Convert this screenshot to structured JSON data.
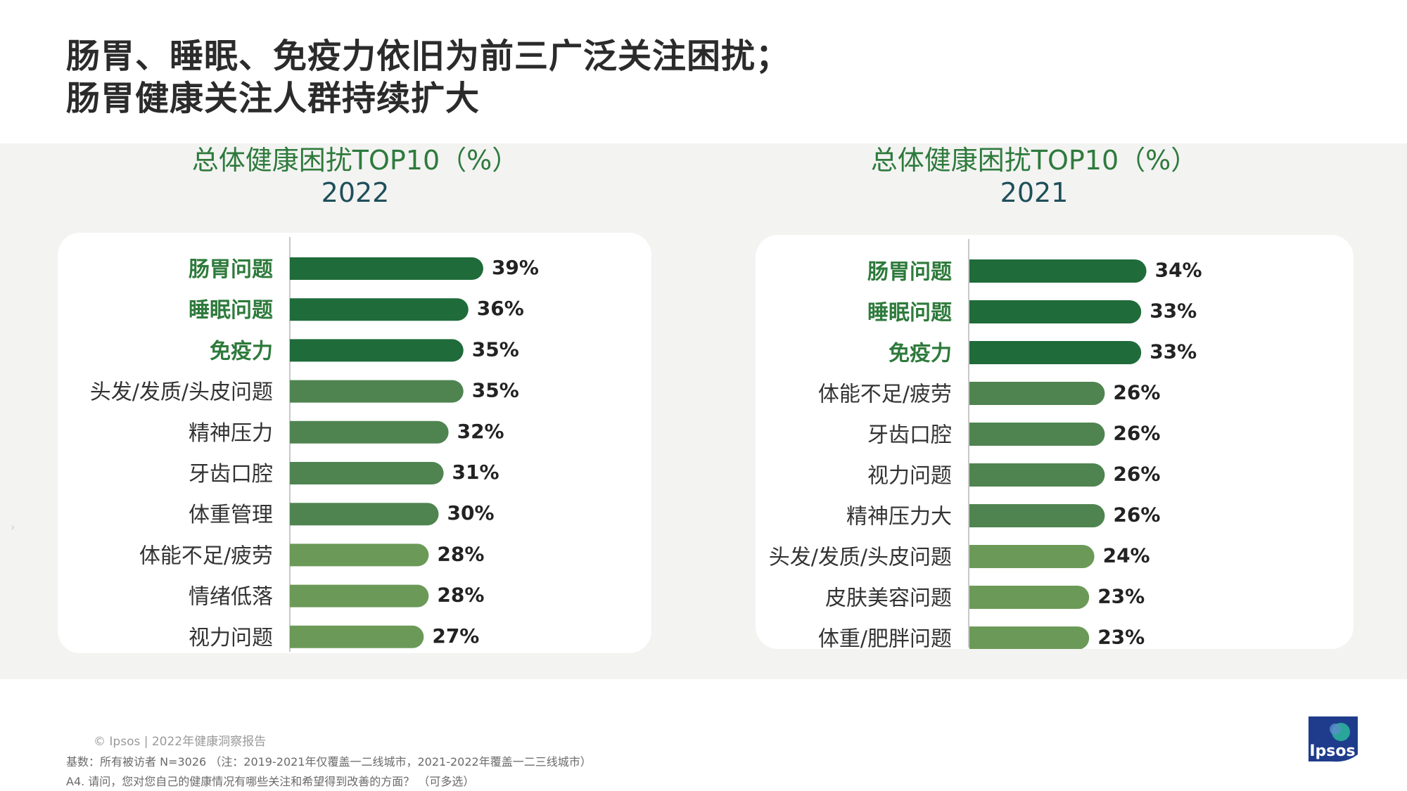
{
  "title": {
    "line1": "肠胃、睡眠、免疫力依旧为前三广泛关注困扰；",
    "line2": "肠胃健康关注人群持续扩大"
  },
  "colors": {
    "top3_bar": "#1f6b3a",
    "mid_bar": "#4f8450",
    "low_bar": "#6b9a58",
    "top3_label": "#2e7a3c",
    "title_green": "#2e7a3c",
    "year_color": "#1f4f5a",
    "band": "#f3f3f2"
  },
  "chart_data": [
    {
      "type": "bar",
      "orientation": "horizontal",
      "title": "总体健康困扰TOP10（%）",
      "subtitle": "2022",
      "categories": [
        "肠胃问题",
        "睡眠问题",
        "免疫力",
        "头发/发质/头皮问题",
        "精神压力",
        "牙齿口腔",
        "体重管理",
        "体能不足/疲劳",
        "情绪低落",
        "视力问题"
      ],
      "values": [
        39,
        36,
        35,
        35,
        32,
        31,
        30,
        28,
        28,
        27
      ],
      "value_labels": [
        "39%",
        "36%",
        "35%",
        "35%",
        "32%",
        "31%",
        "30%",
        "28%",
        "28%",
        "27%"
      ],
      "tiers": [
        0,
        0,
        0,
        1,
        1,
        1,
        1,
        2,
        2,
        2
      ],
      "highlighted": [
        true,
        true,
        true,
        false,
        false,
        false,
        false,
        false,
        false,
        false
      ]
    },
    {
      "type": "bar",
      "orientation": "horizontal",
      "title": "总体健康困扰TOP10（%）",
      "subtitle": "2021",
      "categories": [
        "肠胃问题",
        "睡眠问题",
        "免疫力",
        "体能不足/疲劳",
        "牙齿口腔",
        "视力问题",
        "精神压力大",
        "头发/发质/头皮问题",
        "皮肤美容问题",
        "体重/肥胖问题"
      ],
      "values": [
        34,
        33,
        33,
        26,
        26,
        26,
        26,
        24,
        23,
        23
      ],
      "value_labels": [
        "34%",
        "33%",
        "33%",
        "26%",
        "26%",
        "26%",
        "26%",
        "24%",
        "23%",
        "23%"
      ],
      "tiers": [
        0,
        0,
        0,
        1,
        1,
        1,
        1,
        2,
        2,
        2
      ],
      "highlighted": [
        true,
        true,
        true,
        false,
        false,
        false,
        false,
        false,
        false,
        false
      ]
    }
  ],
  "footer": {
    "copyright": "© Ipsos | 2022年健康洞察报告",
    "base": "基数：所有被访者  N=3026 （注：2019-2021年仅覆盖一二线城市，2021-2022年覆盖一二三线城市）",
    "question": "A4. 请问，您对您自己的健康情况有哪些关注和希望得到改善的方面？ （可多选）"
  },
  "logo": {
    "text": "Ipsos",
    "color": "#1f3c8c"
  },
  "side_mark": "›"
}
